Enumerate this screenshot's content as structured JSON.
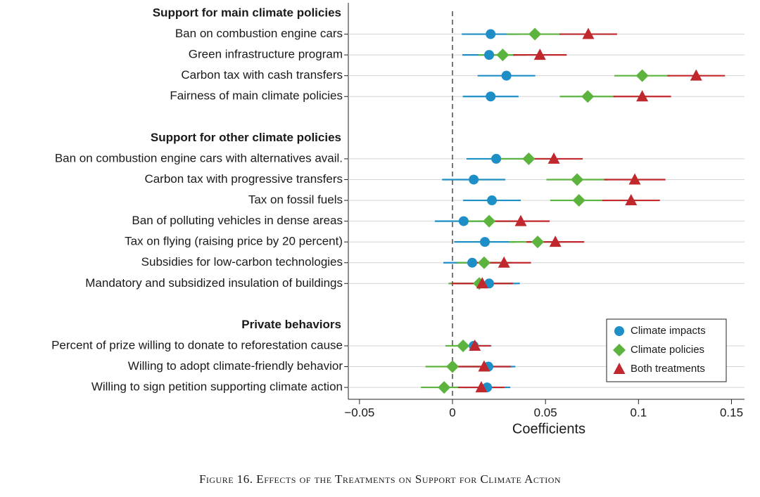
{
  "chart_data": {
    "type": "coefficient",
    "groups": [
      {
        "title": "Support for main climate policies",
        "categories": [
          "Ban on combustion engine cars",
          "Green infrastructure program",
          "Carbon tax with cash transfers",
          "Fairness of main climate policies"
        ]
      },
      {
        "title": "Support for other climate policies",
        "categories": [
          "Ban on combustion engine cars with alternatives avail.",
          "Carbon tax with progressive transfers",
          "Tax on fossil fuels",
          "Ban of polluting vehicles in dense areas",
          "Tax on flying (raising price by 20 percent)",
          "Subsidies for low-carbon technologies",
          "Mandatory and subsidized insulation of buildings"
        ]
      },
      {
        "title": "Private behaviors",
        "categories": [
          "Percent of prize willing to donate to reforestation cause",
          "Willing to adopt climate-friendly behavior",
          "Willing to sign petition supporting climate action"
        ]
      }
    ],
    "series": [
      {
        "name": "Climate impacts",
        "color": "#1e8fc6",
        "marker": "circle",
        "values": [
          [
            0.0205,
            0.0197,
            0.029,
            0.0205
          ],
          [
            0.0235,
            0.0114,
            0.0212,
            0.006,
            0.0174,
            0.0106,
            0.0197
          ],
          [
            0.0114,
            0.0193,
            0.0186
          ]
        ],
        "errors": [
          [
            0.0155,
            0.0144,
            0.0155,
            0.015
          ],
          [
            0.016,
            0.017,
            0.0155,
            0.0155,
            0.0165,
            0.0155,
            0.0165
          ],
          [
            0.0095,
            0.0145,
            0.0125
          ]
        ]
      },
      {
        "name": "Climate policies",
        "color": "#5cb33e",
        "marker": "diamond",
        "values": [
          [
            0.0443,
            0.027,
            0.102,
            0.0727
          ],
          [
            0.041,
            0.067,
            0.068,
            0.0197,
            0.0458,
            0.017,
            0.0144
          ],
          [
            0.0057,
            0,
            -0.0045
          ]
        ],
        "errors": [
          [
            0.015,
            0.013,
            0.015,
            0.015
          ],
          [
            0.015,
            0.0165,
            0.0155,
            0.0155,
            0.0155,
            0.0145,
            0.0165
          ],
          [
            0.0095,
            0.0145,
            0.0125
          ]
        ]
      },
      {
        "name": "Both treatments",
        "color": "#c0282d",
        "marker": "triangle",
        "values": [
          [
            0.073,
            0.047,
            0.131,
            0.102
          ],
          [
            0.0545,
            0.098,
            0.096,
            0.0367,
            0.0553,
            0.0277,
            0.016
          ],
          [
            0.012,
            0.017,
            0.0155
          ]
        ],
        "errors": [
          [
            0.0155,
            0.0144,
            0.0155,
            0.0155
          ],
          [
            0.0155,
            0.0165,
            0.0155,
            0.0155,
            0.0155,
            0.0145,
            0.0165
          ],
          [
            0.0085,
            0.0145,
            0.0125
          ]
        ]
      }
    ],
    "xlabel": "Coefficients",
    "xlim": [
      -0.056,
      0.157
    ],
    "xticks": [
      {
        "value": -0.05,
        "label": "−0.05"
      },
      0,
      0.05,
      0.1,
      0.15
    ],
    "legend": "lower right",
    "caption": "Figure 16. Effects of the Treatments on Support for Climate Action"
  }
}
